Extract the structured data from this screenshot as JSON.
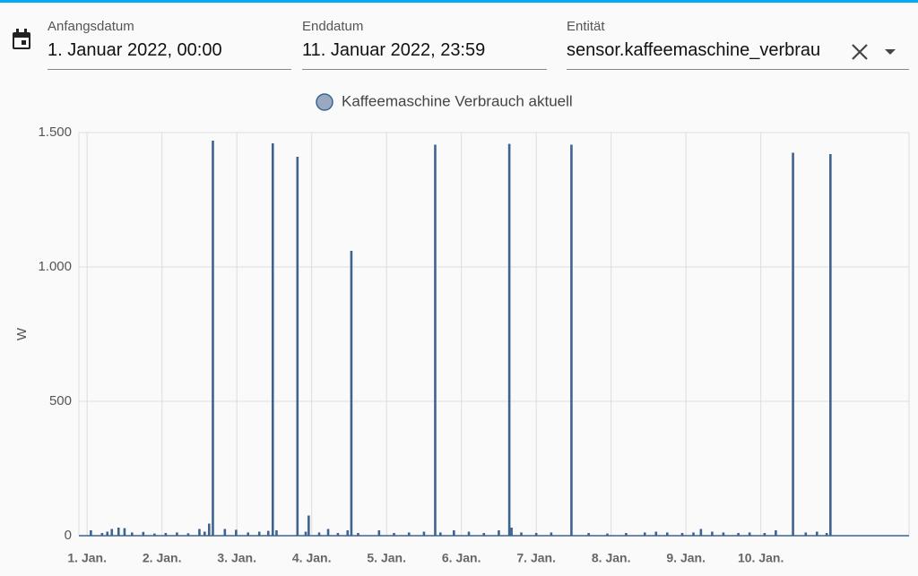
{
  "header": {
    "fields": [
      {
        "label": "Anfangsdatum",
        "value": "1. Januar 2022, 00:00"
      },
      {
        "label": "Enddatum",
        "value": "11. Januar 2022, 23:59"
      },
      {
        "label": "Entität",
        "value": "sensor.kaffeemaschine_verbrau"
      }
    ]
  },
  "chart_data": {
    "type": "bar",
    "y_label": "W",
    "xlim": [
      0.89,
      11.98
    ],
    "xticks": [
      {
        "value": 1,
        "label": "1. Jan."
      },
      {
        "value": 2,
        "label": "2. Jan."
      },
      {
        "value": 3,
        "label": "3. Jan."
      },
      {
        "value": 4,
        "label": "4. Jan."
      },
      {
        "value": 5,
        "label": "5. Jan."
      },
      {
        "value": 6,
        "label": "6. Jan."
      },
      {
        "value": 7,
        "label": "7. Jan."
      },
      {
        "value": 8,
        "label": "8. Jan."
      },
      {
        "value": 9,
        "label": "9. Jan."
      },
      {
        "value": 10,
        "label": "10. Jan."
      }
    ],
    "ylim": [
      0,
      1500
    ],
    "yticks": [
      0,
      500,
      {
        "value": 1000,
        "label": "1.000"
      },
      {
        "value": 1500,
        "label": "1.500"
      }
    ],
    "grid": true,
    "legend": "top",
    "series": [
      {
        "name": "Kaffeemaschine Verbrauch aktuell",
        "color": "#3d6391",
        "x": [
          1.05,
          1.2,
          1.27,
          1.33,
          1.42,
          1.5,
          1.6,
          1.75,
          1.9,
          2.05,
          2.2,
          2.35,
          2.5,
          2.57,
          2.63,
          2.68,
          2.84,
          2.99,
          3.15,
          3.3,
          3.42,
          3.48,
          3.53,
          3.81,
          3.92,
          3.96,
          4.1,
          4.22,
          4.35,
          4.48,
          4.53,
          4.62,
          4.9,
          5.1,
          5.3,
          5.5,
          5.65,
          5.72,
          5.9,
          6.1,
          6.3,
          6.5,
          6.64,
          6.67,
          6.8,
          7.0,
          7.2,
          7.47,
          7.7,
          7.95,
          8.2,
          8.45,
          8.6,
          8.75,
          8.95,
          9.1,
          9.2,
          9.35,
          9.5,
          9.7,
          9.85,
          10.05,
          10.2,
          10.43,
          10.6,
          10.75,
          10.88,
          10.93
        ],
        "values": [
          20,
          10,
          15,
          25,
          30,
          28,
          12,
          14,
          8,
          10,
          12,
          9,
          25,
          15,
          45,
          1470,
          25,
          22,
          12,
          15,
          18,
          1460,
          20,
          1410,
          15,
          75,
          12,
          25,
          10,
          20,
          1060,
          10,
          20,
          10,
          12,
          15,
          1455,
          12,
          20,
          15,
          10,
          20,
          1458,
          30,
          12,
          10,
          12,
          1455,
          10,
          8,
          10,
          12,
          15,
          12,
          10,
          12,
          25,
          15,
          12,
          10,
          12,
          10,
          20,
          1425,
          12,
          15,
          10,
          1420
        ]
      }
    ]
  }
}
